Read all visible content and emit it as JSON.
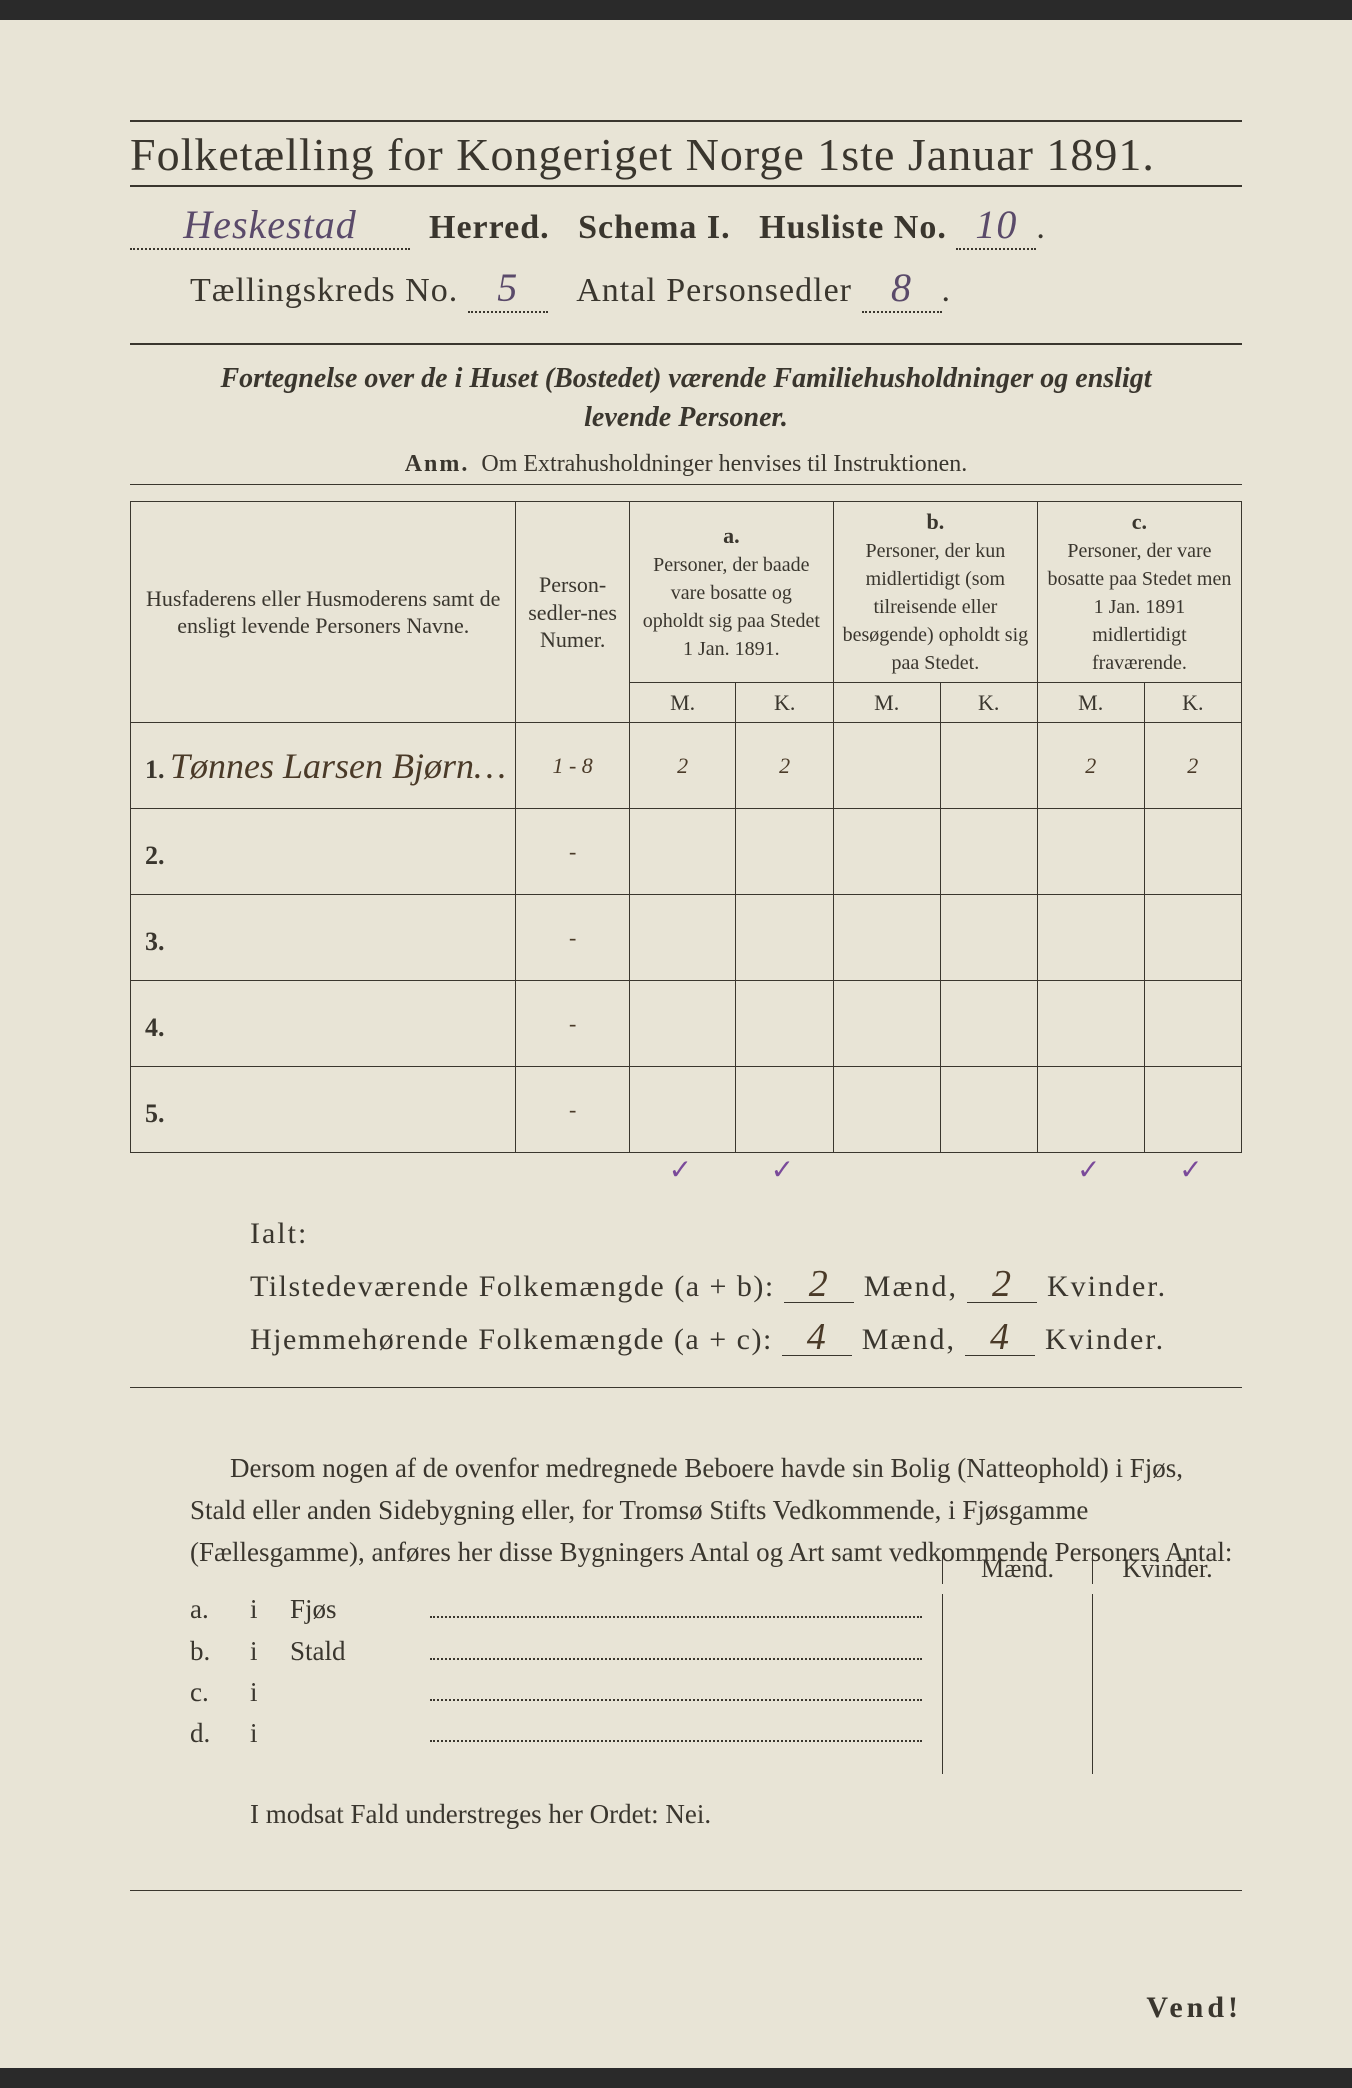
{
  "header": {
    "main_title": "Folketælling for Kongeriget Norge 1ste Januar 1891.",
    "herred_value": "Heskestad",
    "herred_label": "Herred.",
    "schema_label": "Schema I.",
    "husliste_label": "Husliste No.",
    "husliste_value": "10",
    "kreds_label": "Tællingskreds No.",
    "kreds_value": "5",
    "personsedler_label": "Antal Personsedler",
    "personsedler_value": "8"
  },
  "subtitle": {
    "line1_a": "Fortegnelse over de i Huset (Bostedet) værende Familiehusholdninger og ensligt",
    "line2": "levende Personer.",
    "anm_label": "Anm.",
    "anm_text": "Om Extrahusholdninger henvises til Instruktionen."
  },
  "table": {
    "col1": "Husfaderens eller Husmoderens samt de ensligt levende Personers Navne.",
    "col2": "Person-sedler-nes Numer.",
    "col_a_label": "a.",
    "col_a": "Personer, der baade vare bosatte og opholdt sig paa Stedet 1 Jan. 1891.",
    "col_b_label": "b.",
    "col_b": "Personer, der kun midlertidigt (som tilreisende eller besøgende) opholdt sig paa Stedet.",
    "col_c_label": "c.",
    "col_c": "Personer, der vare bosatte paa Stedet men 1 Jan. 1891 midlertidigt fraværende.",
    "M": "M.",
    "K": "K.",
    "rows": [
      {
        "n": "1.",
        "name": "Tønnes Larsen Bjørn…",
        "numer": "1 - 8",
        "aM": "2",
        "aK": "2",
        "bM": "",
        "bK": "",
        "cM": "2",
        "cK": "2"
      },
      {
        "n": "2.",
        "name": "",
        "numer": "-",
        "aM": "",
        "aK": "",
        "bM": "",
        "bK": "",
        "cM": "",
        "cK": ""
      },
      {
        "n": "3.",
        "name": "",
        "numer": "-",
        "aM": "",
        "aK": "",
        "bM": "",
        "bK": "",
        "cM": "",
        "cK": ""
      },
      {
        "n": "4.",
        "name": "",
        "numer": "-",
        "aM": "",
        "aK": "",
        "bM": "",
        "bK": "",
        "cM": "",
        "cK": ""
      },
      {
        "n": "5.",
        "name": "",
        "numer": "-",
        "aM": "",
        "aK": "",
        "bM": "",
        "bK": "",
        "cM": "",
        "cK": ""
      }
    ],
    "tick": "✓"
  },
  "totals": {
    "ialt": "Ialt:",
    "line1_label": "Tilstedeværende Folkemængde (a + b):",
    "line1_m": "2",
    "line1_k": "2",
    "line2_label": "Hjemmehørende Folkemængde (a + c):",
    "line2_m": "4",
    "line2_k": "4",
    "maend": "Mænd,",
    "kvinder": "Kvinder."
  },
  "paragraph": "Dersom nogen af de ovenfor medregnede Beboere havde sin Bolig (Natteophold) i Fjøs, Stald eller anden Sidebygning eller, for Tromsø Stifts Vedkommende, i Fjøsgamme (Fællesgamme), anføres her disse Bygningers Antal og Art samt vedkommende Personers Antal:",
  "abcd": {
    "maend": "Mænd.",
    "kvinder": "Kvinder.",
    "rows": [
      {
        "l": "a.",
        "i": "i",
        "w": "Fjøs"
      },
      {
        "l": "b.",
        "i": "i",
        "w": "Stald"
      },
      {
        "l": "c.",
        "i": "i",
        "w": ""
      },
      {
        "l": "d.",
        "i": "i",
        "w": ""
      }
    ]
  },
  "modsat": "I modsat Fald understreges her Ordet: Nei.",
  "vend": "Vend!",
  "colors": {
    "paper": "#e8e4d6",
    "ink": "#3a362e",
    "handwriting_purple": "#5a4a6a",
    "handwriting_brown": "#4a3a28",
    "tick_purple": "#7a4a9a"
  }
}
